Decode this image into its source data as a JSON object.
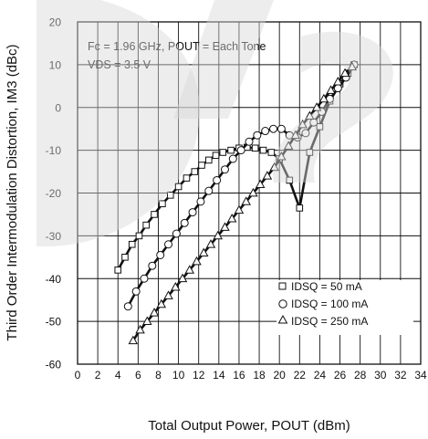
{
  "chart_data": {
    "type": "line",
    "xlabel": "Total Output Power, POUT (dBm)",
    "ylabel": "Third Order Intermodulation Distortion, IM3 (dBc)",
    "xlim": [
      0,
      34
    ],
    "ylim": [
      -60,
      20
    ],
    "x_ticks": [
      0,
      2,
      4,
      6,
      8,
      10,
      12,
      14,
      16,
      18,
      20,
      22,
      24,
      26,
      28,
      30,
      32,
      34
    ],
    "y_ticks": [
      -60,
      -50,
      -40,
      -30,
      -20,
      -10,
      0,
      10,
      20
    ],
    "grid": true,
    "annotations": [
      "Fc = 1.96 GHz, POUT = Each Tone",
      "VDS = 3.5 V"
    ],
    "legend_position": "lower-right",
    "series": [
      {
        "name": "IDSQ = 50 mA",
        "marker": "square",
        "points": [
          [
            4,
            -38
          ],
          [
            4.7,
            -35
          ],
          [
            5.4,
            -32
          ],
          [
            6.1,
            -30
          ],
          [
            6.8,
            -27.5
          ],
          [
            7.6,
            -25
          ],
          [
            8.4,
            -22.5
          ],
          [
            9.2,
            -20.5
          ],
          [
            10,
            -18.5
          ],
          [
            10.8,
            -16.5
          ],
          [
            11.6,
            -15
          ],
          [
            12.3,
            -13.5
          ],
          [
            13,
            -12.3
          ],
          [
            13.7,
            -11.2
          ],
          [
            14.4,
            -10.5
          ],
          [
            15.2,
            -10
          ],
          [
            16,
            -9.5
          ],
          [
            16.8,
            -9.3
          ],
          [
            17.6,
            -9.5
          ],
          [
            18.4,
            -10
          ],
          [
            19.2,
            -10.5
          ],
          [
            20,
            -12
          ],
          [
            21,
            -17
          ],
          [
            22,
            -23.5
          ],
          [
            23,
            -10.5
          ],
          [
            24,
            -4.5
          ],
          [
            25,
            1.5
          ],
          [
            26,
            5.5
          ],
          [
            26.8,
            8
          ],
          [
            27.4,
            10
          ]
        ]
      },
      {
        "name": "IDSQ = 100 mA",
        "marker": "circle",
        "points": [
          [
            5,
            -46.5
          ],
          [
            5.8,
            -43
          ],
          [
            6.6,
            -40
          ],
          [
            7.4,
            -37
          ],
          [
            8.2,
            -34.5
          ],
          [
            9,
            -32
          ],
          [
            9.8,
            -29.5
          ],
          [
            10.6,
            -27
          ],
          [
            11.4,
            -24.5
          ],
          [
            12.2,
            -22
          ],
          [
            13,
            -19.5
          ],
          [
            13.8,
            -17
          ],
          [
            14.6,
            -14.5
          ],
          [
            15.4,
            -12
          ],
          [
            16.2,
            -10
          ],
          [
            17,
            -8
          ],
          [
            17.8,
            -6.5
          ],
          [
            18.6,
            -5.5
          ],
          [
            19.4,
            -5
          ],
          [
            20.2,
            -5
          ],
          [
            21,
            -6.5
          ],
          [
            21.8,
            -7
          ],
          [
            22.6,
            -6
          ],
          [
            23.4,
            -3.5
          ],
          [
            24.2,
            -1
          ],
          [
            25,
            2
          ],
          [
            25.8,
            4.5
          ],
          [
            26.6,
            7
          ],
          [
            27.4,
            10
          ]
        ]
      },
      {
        "name": "IDSQ = 250 mA",
        "marker": "triangle",
        "points": [
          [
            5.5,
            -54.5
          ],
          [
            6.2,
            -52
          ],
          [
            6.9,
            -50
          ],
          [
            7.6,
            -48
          ],
          [
            8.3,
            -46
          ],
          [
            9,
            -44
          ],
          [
            9.7,
            -42
          ],
          [
            10.4,
            -40
          ],
          [
            11.1,
            -38
          ],
          [
            11.8,
            -36
          ],
          [
            12.5,
            -34
          ],
          [
            13.2,
            -32
          ],
          [
            13.9,
            -30
          ],
          [
            14.6,
            -28
          ],
          [
            15.3,
            -26
          ],
          [
            16,
            -24
          ],
          [
            16.7,
            -22
          ],
          [
            17.4,
            -20
          ],
          [
            18.1,
            -18
          ],
          [
            18.8,
            -16
          ],
          [
            19.5,
            -14
          ],
          [
            20.2,
            -11.5
          ],
          [
            20.9,
            -9
          ],
          [
            21.6,
            -6.5
          ],
          [
            22.3,
            -4
          ],
          [
            23,
            -2
          ],
          [
            23.7,
            0
          ],
          [
            24.4,
            2
          ],
          [
            25.1,
            4
          ],
          [
            25.8,
            6
          ],
          [
            26.5,
            8
          ],
          [
            27.2,
            9.5
          ]
        ]
      }
    ]
  }
}
